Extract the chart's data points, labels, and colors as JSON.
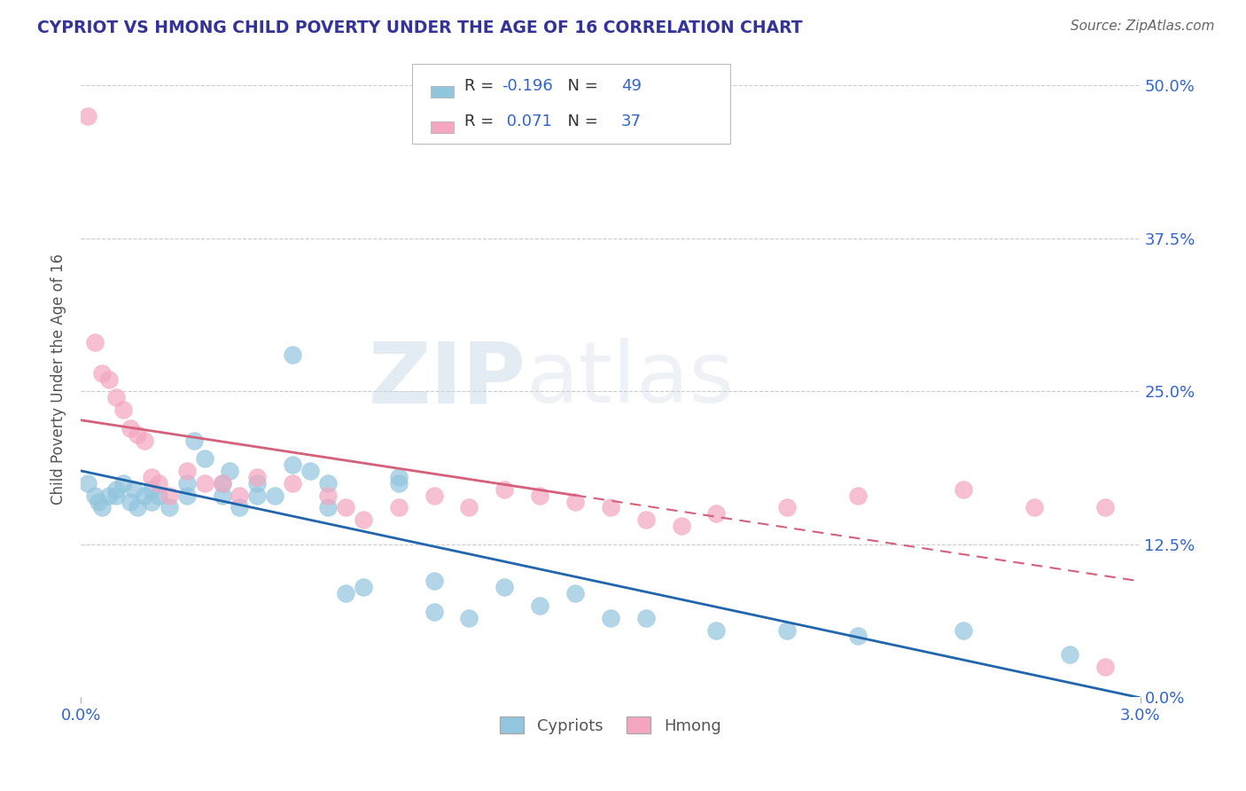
{
  "title": "CYPRIOT VS HMONG CHILD POVERTY UNDER THE AGE OF 16 CORRELATION CHART",
  "source": "Source: ZipAtlas.com",
  "ylabel": "Child Poverty Under the Age of 16",
  "xlim": [
    0.0,
    0.03
  ],
  "ylim": [
    0.0,
    0.52
  ],
  "xtick_labels": [
    "0.0%",
    "3.0%"
  ],
  "xtick_vals": [
    0.0,
    0.03
  ],
  "ytick_vals": [
    0.125,
    0.25,
    0.375,
    0.5
  ],
  "right_ytick_vals": [
    0.0,
    0.125,
    0.25,
    0.375,
    0.5
  ],
  "right_ytick_labels": [
    "0.0%",
    "12.5%",
    "25.0%",
    "37.5%",
    "50.0%"
  ],
  "cypriot_color": "#92c5de",
  "hmong_color": "#f4a6c0",
  "cypriot_R": -0.196,
  "cypriot_N": 49,
  "hmong_R": 0.071,
  "hmong_N": 37,
  "cypriot_line_color": "#2166ac",
  "hmong_line_color": "#d6604d",
  "watermark_zip": "ZIP",
  "watermark_atlas": "atlas",
  "legend_label_cypriot": "Cypriots",
  "legend_label_hmong": "Hmong",
  "cypriot_x": [
    0.0002,
    0.0004,
    0.0005,
    0.0006,
    0.0008,
    0.001,
    0.001,
    0.0012,
    0.0014,
    0.0015,
    0.0016,
    0.0018,
    0.002,
    0.002,
    0.0022,
    0.0025,
    0.003,
    0.003,
    0.0032,
    0.0035,
    0.004,
    0.004,
    0.0042,
    0.0045,
    0.005,
    0.005,
    0.0055,
    0.006,
    0.006,
    0.0065,
    0.007,
    0.007,
    0.0075,
    0.008,
    0.009,
    0.009,
    0.01,
    0.01,
    0.011,
    0.012,
    0.013,
    0.014,
    0.015,
    0.016,
    0.018,
    0.02,
    0.022,
    0.025,
    0.028
  ],
  "cypriot_y": [
    0.175,
    0.165,
    0.16,
    0.155,
    0.165,
    0.165,
    0.17,
    0.175,
    0.16,
    0.17,
    0.155,
    0.165,
    0.16,
    0.17,
    0.165,
    0.155,
    0.175,
    0.165,
    0.21,
    0.195,
    0.175,
    0.165,
    0.185,
    0.155,
    0.165,
    0.175,
    0.165,
    0.28,
    0.19,
    0.185,
    0.175,
    0.155,
    0.085,
    0.09,
    0.175,
    0.18,
    0.095,
    0.07,
    0.065,
    0.09,
    0.075,
    0.085,
    0.065,
    0.065,
    0.055,
    0.055,
    0.05,
    0.055,
    0.035
  ],
  "hmong_x": [
    0.0002,
    0.0004,
    0.0006,
    0.0008,
    0.001,
    0.0012,
    0.0014,
    0.0016,
    0.0018,
    0.002,
    0.0022,
    0.0025,
    0.003,
    0.0035,
    0.004,
    0.0045,
    0.005,
    0.006,
    0.007,
    0.0075,
    0.008,
    0.009,
    0.01,
    0.011,
    0.012,
    0.013,
    0.014,
    0.015,
    0.016,
    0.017,
    0.018,
    0.02,
    0.022,
    0.025,
    0.027,
    0.029,
    0.029
  ],
  "hmong_y": [
    0.475,
    0.29,
    0.265,
    0.26,
    0.245,
    0.235,
    0.22,
    0.215,
    0.21,
    0.18,
    0.175,
    0.165,
    0.185,
    0.175,
    0.175,
    0.165,
    0.18,
    0.175,
    0.165,
    0.155,
    0.145,
    0.155,
    0.165,
    0.155,
    0.17,
    0.165,
    0.16,
    0.155,
    0.145,
    0.14,
    0.15,
    0.155,
    0.165,
    0.17,
    0.155,
    0.155,
    0.025
  ]
}
